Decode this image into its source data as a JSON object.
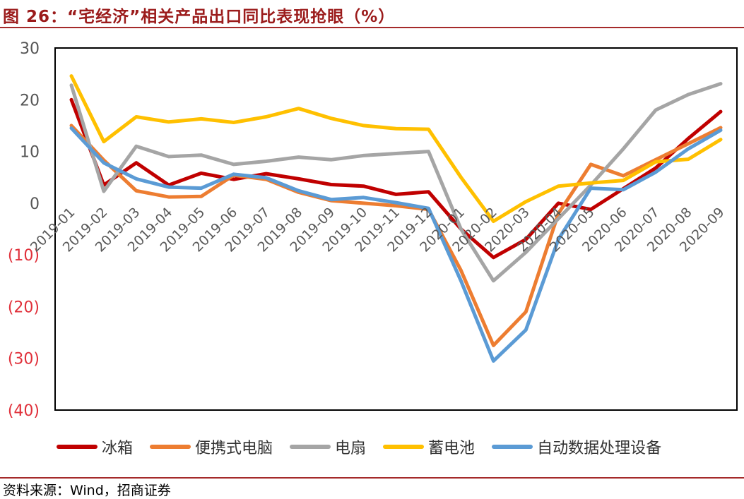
{
  "header": {
    "title": "图 26：“宅经济”相关产品出口同比表现抢眼（%）"
  },
  "footer": {
    "source": "资料来源：Wind，招商证券"
  },
  "colors": {
    "title": "#9b1b1b",
    "rule": "#a52a2a",
    "negative_tick": "#e0303a",
    "positive_tick": "#555555"
  },
  "chart_data": {
    "type": "line",
    "title": "“宅经济”相关产品出口同比表现抢眼（%）",
    "xlabel": "",
    "ylabel": "",
    "ylim": [
      -40,
      30
    ],
    "yticks": [
      30,
      20,
      10,
      0,
      -10,
      -20,
      -30,
      -40
    ],
    "ytick_labels": [
      "30",
      "20",
      "10",
      "0",
      "(10)",
      "(20)",
      "(30)",
      "(40)"
    ],
    "grid": false,
    "legend_position": "bottom",
    "categories": [
      "2019-01",
      "2019-02",
      "2019-03",
      "2019-04",
      "2019-05",
      "2019-06",
      "2019-07",
      "2019-08",
      "2019-09",
      "2019-10",
      "2019-11",
      "2019-12",
      "2020-01",
      "2020-02",
      "2020-03",
      "2020-04",
      "2020-05",
      "2020-06",
      "2020-07",
      "2020-08",
      "2020-09"
    ],
    "series": [
      {
        "name": "冰箱",
        "color": "#c00000",
        "values": [
          20,
          3.5,
          7.8,
          3.5,
          5.8,
          4.6,
          5.7,
          4.7,
          3.6,
          3.3,
          1.7,
          2.2,
          -5,
          -10.5,
          -7,
          0,
          -1.2,
          2.8,
          6.8,
          12.5,
          17.7
        ]
      },
      {
        "name": "便携式电脑",
        "color": "#ed7d31",
        "values": [
          15,
          8.3,
          2.4,
          1.2,
          1.3,
          5.4,
          4.6,
          2.1,
          0.5,
          0,
          -0.5,
          -1.2,
          -13,
          -27.5,
          -21,
          -2,
          7.5,
          5.3,
          8.4,
          11.5,
          14.6
        ]
      },
      {
        "name": "电扇",
        "color": "#a5a5a5",
        "values": [
          22.8,
          2.3,
          11,
          9,
          9.3,
          7.5,
          8.1,
          8.9,
          8.4,
          9.2,
          9.6,
          10,
          -5,
          -15,
          -9.5,
          -3,
          3.5,
          10.5,
          18,
          21,
          23.1
        ]
      },
      {
        "name": "蓄电池",
        "color": "#ffc000",
        "values": [
          24.6,
          11.9,
          16.7,
          15.7,
          16.3,
          15.6,
          16.7,
          18.3,
          16.4,
          15,
          14.4,
          14.3,
          5,
          -3.5,
          0.3,
          3.3,
          3.9,
          4.4,
          8,
          8.5,
          12.3
        ]
      },
      {
        "name": "自动数据处理设备",
        "color": "#5b9bd5",
        "values": [
          14.5,
          7.8,
          4.7,
          3.1,
          2.9,
          5.6,
          4.9,
          2.4,
          0.7,
          1.1,
          0.1,
          -1,
          -15,
          -30.5,
          -24.5,
          -7,
          2.9,
          2.6,
          6,
          10.5,
          14.1
        ]
      }
    ]
  }
}
